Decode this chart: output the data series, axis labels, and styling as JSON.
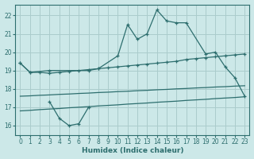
{
  "xlabel": "Humidex (Indice chaleur)",
  "background_color": "#cce8e8",
  "grid_color": "#aacccc",
  "line_color": "#2d6e6e",
  "xlim": [
    -0.5,
    23.5
  ],
  "ylim": [
    15.5,
    22.6
  ],
  "yticks": [
    16,
    17,
    18,
    19,
    20,
    21,
    22
  ],
  "xticks": [
    0,
    1,
    2,
    3,
    4,
    5,
    6,
    7,
    8,
    9,
    10,
    11,
    12,
    13,
    14,
    15,
    16,
    17,
    18,
    19,
    20,
    21,
    22,
    23
  ],
  "line1_x": [
    0,
    1,
    3,
    7,
    8,
    10,
    11,
    12,
    13,
    14,
    15,
    16,
    17,
    19,
    20,
    21,
    22,
    23
  ],
  "line1_y": [
    19.4,
    18.9,
    19.0,
    19.0,
    19.1,
    19.8,
    21.5,
    20.7,
    21.0,
    22.3,
    21.7,
    21.6,
    21.6,
    19.9,
    20.0,
    19.2,
    18.6,
    17.6
  ],
  "line2_x": [
    0,
    1,
    2,
    3,
    4,
    5,
    6,
    7,
    8,
    9,
    10,
    11,
    12,
    13,
    14,
    15,
    16,
    17,
    18,
    19,
    20,
    21,
    22,
    23
  ],
  "line2_y": [
    19.4,
    18.9,
    18.9,
    18.85,
    18.9,
    18.95,
    19.0,
    19.05,
    19.1,
    19.15,
    19.2,
    19.25,
    19.3,
    19.35,
    19.4,
    19.45,
    19.5,
    19.6,
    19.65,
    19.7,
    19.75,
    19.8,
    19.85,
    19.9
  ],
  "line3_x": [
    0,
    1,
    2,
    3,
    4,
    5,
    6,
    7,
    8,
    9,
    10,
    11,
    12,
    13,
    14,
    15,
    16,
    17,
    18,
    19,
    20,
    21,
    22,
    23
  ],
  "line3_y": [
    17.6,
    17.62,
    17.65,
    17.67,
    17.7,
    17.72,
    17.75,
    17.77,
    17.8,
    17.82,
    17.85,
    17.87,
    17.9,
    17.92,
    17.95,
    17.97,
    18.0,
    18.02,
    18.05,
    18.07,
    18.1,
    18.12,
    18.15,
    18.17
  ],
  "line4_x": [
    0,
    1,
    2,
    3,
    4,
    5,
    6,
    7,
    8,
    9,
    10,
    11,
    12,
    13,
    14,
    15,
    16,
    17,
    18,
    19,
    20,
    21,
    22,
    23
  ],
  "line4_y": [
    16.8,
    16.83,
    16.87,
    16.9,
    16.93,
    16.97,
    17.0,
    17.03,
    17.07,
    17.1,
    17.13,
    17.17,
    17.2,
    17.23,
    17.27,
    17.3,
    17.33,
    17.37,
    17.4,
    17.43,
    17.47,
    17.5,
    17.53,
    17.57
  ],
  "line5_x": [
    3,
    4,
    5,
    6,
    7
  ],
  "line5_y": [
    17.3,
    16.4,
    16.0,
    16.1,
    17.0
  ]
}
